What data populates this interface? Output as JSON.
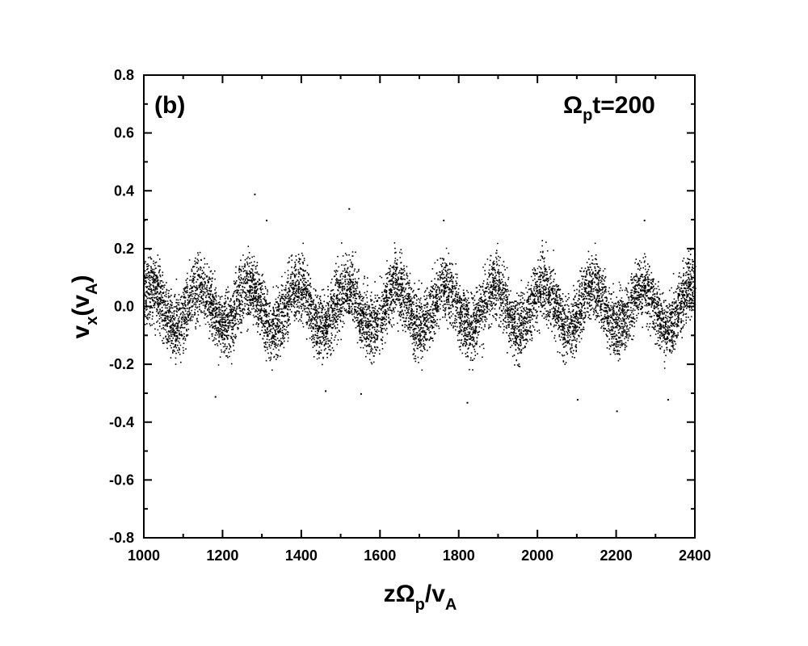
{
  "chart_data": {
    "type": "scatter",
    "panel_label": "(b)",
    "time_label": {
      "symbol": "Ω",
      "sub": "p",
      "rest": "t=200"
    },
    "xlabel": {
      "a": "zΩ",
      "a_sub": "p",
      "b": "/v",
      "b_sub": "A"
    },
    "ylabel": {
      "a": "v",
      "a_sub": "x",
      "b": "(v",
      "b_sub": "A",
      "c": ")"
    },
    "xlim": [
      1000,
      2400
    ],
    "ylim": [
      -0.8,
      0.8
    ],
    "x_ticks": [
      1000,
      1200,
      1400,
      1600,
      1800,
      2000,
      2200,
      2400
    ],
    "y_ticks": [
      -0.8,
      -0.6,
      -0.4,
      -0.2,
      0.0,
      0.2,
      0.4,
      0.6,
      0.8
    ],
    "y_tick_labels": [
      "-0.8",
      "-0.6",
      "-0.4",
      "-0.2",
      "0.0",
      "0.2",
      "0.4",
      "0.6",
      "0.8"
    ],
    "x_minor_step": 100,
    "y_minor_step": 0.1,
    "grid": false,
    "marker_color": "#000000",
    "wave": {
      "description_points": "dense particle cloud oscillating sinusoidally",
      "wavelength": 125,
      "amplitude": 0.07,
      "peak_x": [
        1140,
        1265,
        1390,
        1515,
        1640,
        1765,
        1890,
        2015,
        2140,
        2265,
        2390
      ],
      "spread": 0.075,
      "outliers": [
        [
          1280,
          0.39
        ],
        [
          1520,
          0.34
        ],
        [
          1760,
          0.3
        ],
        [
          1000,
          0.3
        ],
        [
          2270,
          0.3
        ],
        [
          2200,
          -0.36
        ],
        [
          1820,
          -0.33
        ],
        [
          1180,
          -0.31
        ],
        [
          2100,
          -0.32
        ],
        [
          2330,
          -0.32
        ],
        [
          1550,
          -0.3
        ],
        [
          1460,
          -0.29
        ],
        [
          1310,
          0.3
        ]
      ]
    }
  }
}
